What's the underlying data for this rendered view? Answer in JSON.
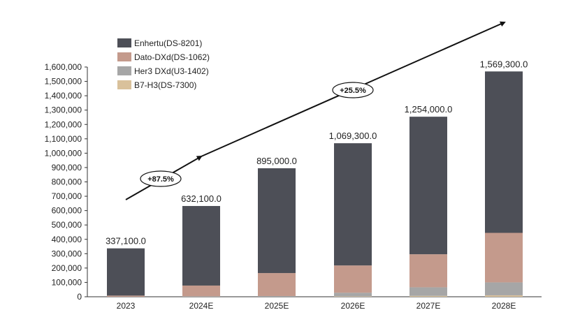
{
  "chart_data": {
    "type": "bar",
    "stacked": true,
    "categories": [
      "2023",
      "2024E",
      "2025E",
      "2026E",
      "2027E",
      "2028E"
    ],
    "series": [
      {
        "name": "B7-H3(DS-7300)",
        "color": "#d9c19b",
        "values": [
          0,
          0,
          0,
          3000,
          6000,
          10000
        ]
      },
      {
        "name": "Her3 DXd(U3-1402)",
        "color": "#a6a6a6",
        "values": [
          0,
          3000,
          5000,
          25000,
          60000,
          90000
        ]
      },
      {
        "name": "Dato-DXd(DS-1062)",
        "color": "#c49a8c",
        "values": [
          8000,
          75000,
          160000,
          190000,
          230000,
          345000
        ]
      },
      {
        "name": "Enhertu(DS-8201)",
        "color": "#4d4f57",
        "values": [
          329100,
          554100,
          730000,
          851300,
          958000,
          1124300
        ]
      }
    ],
    "totals": [
      "337,100.0",
      "632,100.0",
      "895,000.0",
      "1,069,300.0",
      "1,254,000.0",
      "1,569,300.0"
    ],
    "total_values": [
      337100,
      632100,
      895000,
      1069300,
      1254000,
      1569300
    ],
    "ylim": [
      0,
      1600000
    ],
    "yticks": [
      "0",
      "100,000",
      "200,000",
      "300,000",
      "400,000",
      "500,000",
      "600,000",
      "700,000",
      "800,000",
      "900,000",
      "1,000,000",
      "1,100,000",
      "1,200,000",
      "1,300,000",
      "1,400,000",
      "1,500,000",
      "1,600,000"
    ],
    "legend_order": [
      "Enhertu(DS-8201)",
      "Dato-DXd(DS-1062)",
      "Her3 DXd(U3-1402)",
      "B7-H3(DS-7300)"
    ],
    "legend_position": "top-left",
    "grid": false,
    "annotations": [
      "+87.5%",
      "+25.5%"
    ]
  }
}
